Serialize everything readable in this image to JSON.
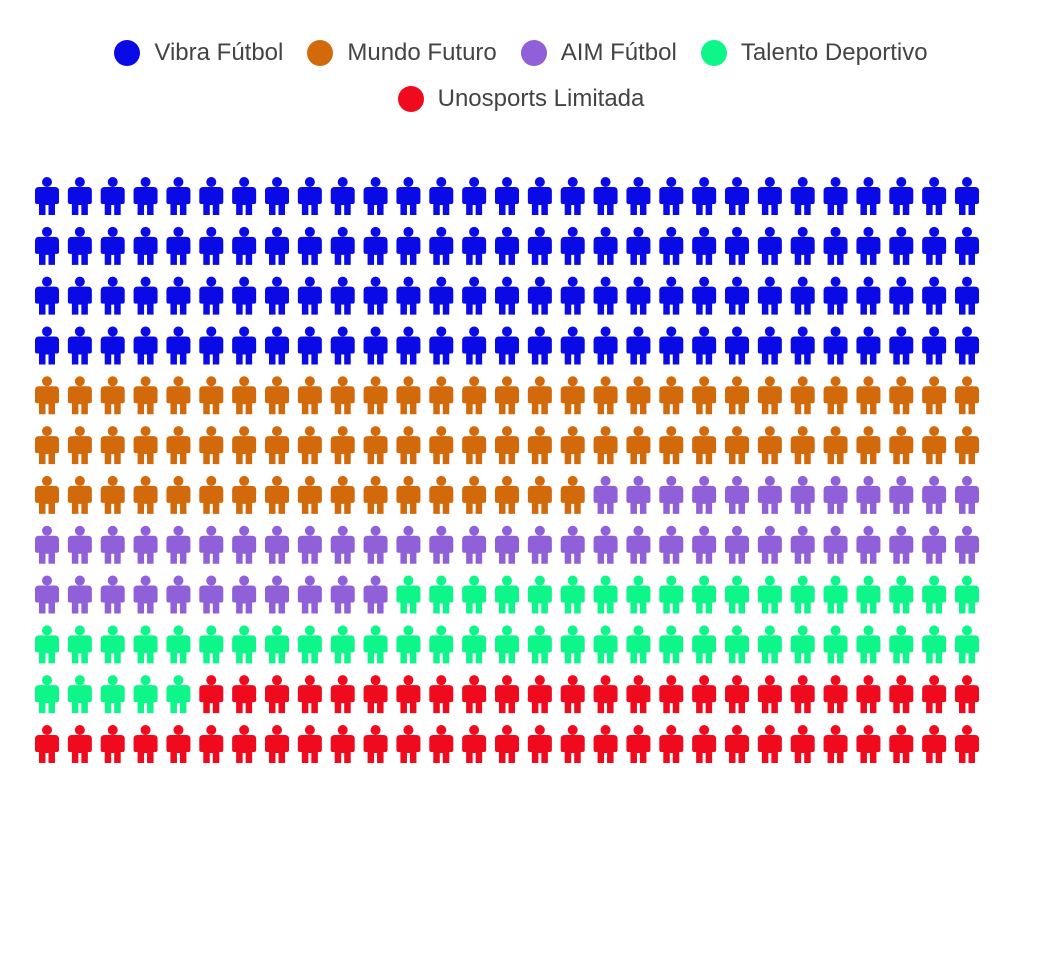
{
  "chart_data": {
    "type": "waffle",
    "unit_icon": "person-icon",
    "grid": {
      "rows": 12,
      "columns": 29
    },
    "fill_order": "row-major, top-left to bottom-right",
    "legend_position": "top-center",
    "series": [
      {
        "name": "Vibra Fútbol",
        "value": 116,
        "color": "#0a0ae6"
      },
      {
        "name": "Mundo Futuro",
        "value": 75,
        "color": "#d2690a"
      },
      {
        "name": "AIM Fútbol",
        "value": 52,
        "color": "#9060d8"
      },
      {
        "name": "Talento Deportivo",
        "value": 52,
        "color": "#0ef58a"
      },
      {
        "name": "Unosports Limitada",
        "value": 53,
        "color": "#f00a1e"
      }
    ]
  }
}
